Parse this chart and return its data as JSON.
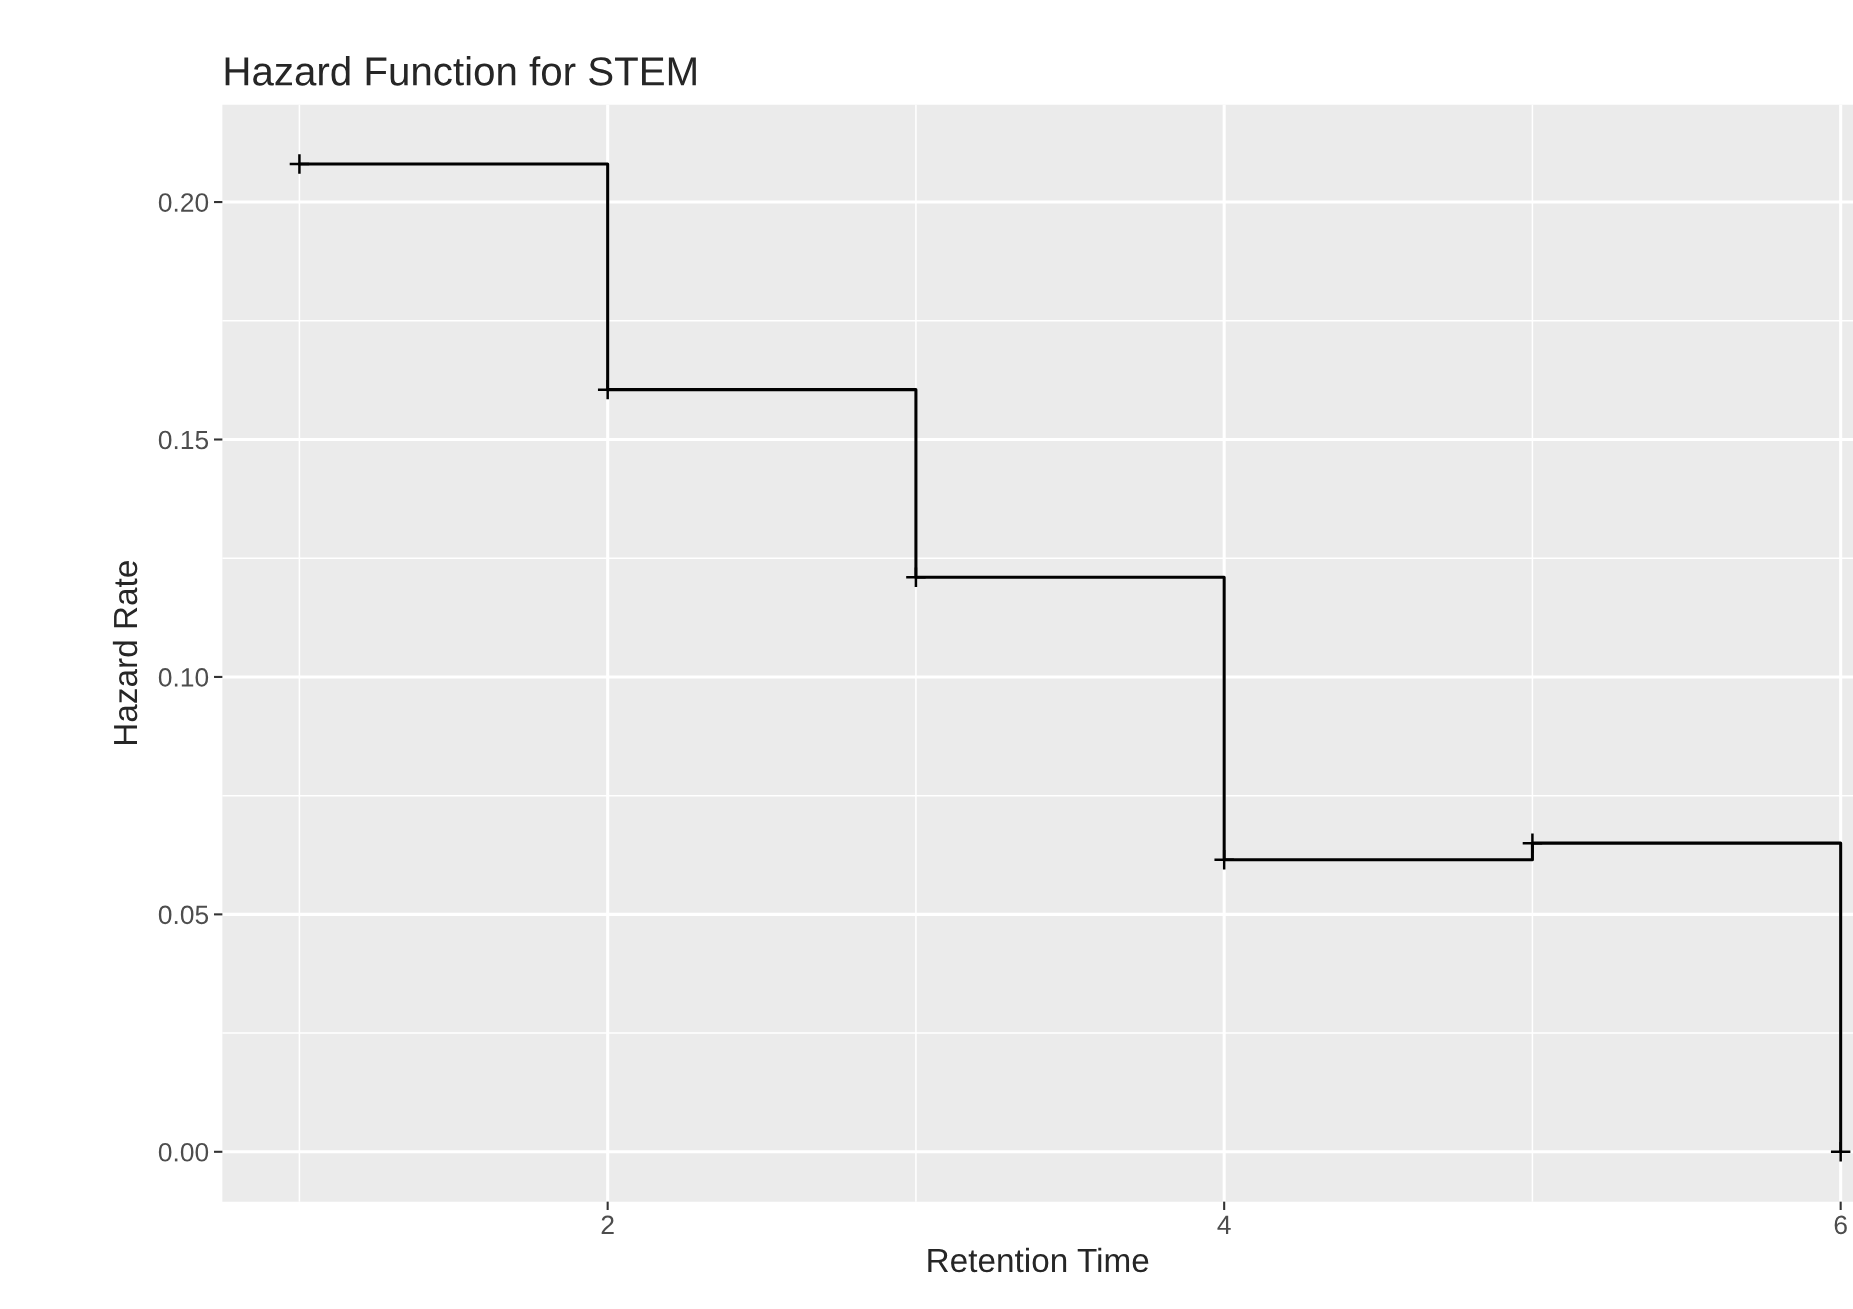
{
  "chart_data": {
    "type": "step",
    "title": "Hazard Function for STEM",
    "xlabel": "Retention Time",
    "ylabel": "Hazard Rate",
    "x": [
      1,
      2,
      3,
      4,
      5,
      6
    ],
    "series": [
      {
        "color": "#000000",
        "values": [
          0.208,
          0.1605,
          0.121,
          0.0615,
          0.065,
          0.0
        ]
      }
    ],
    "xlim": [
      0.75,
      6.04
    ],
    "xticks": [
      2,
      4,
      6
    ],
    "ylim": [
      -0.0105,
      0.2205
    ],
    "yticks": [
      {
        "value": 0.0,
        "label": "0.00"
      },
      {
        "value": 0.05,
        "label": "0.05"
      },
      {
        "value": 0.1,
        "label": "0.10"
      },
      {
        "value": 0.15,
        "label": "0.15"
      },
      {
        "value": 0.2,
        "label": "0.20"
      }
    ],
    "grid": true,
    "marker": "cross",
    "line_style": "solid"
  }
}
